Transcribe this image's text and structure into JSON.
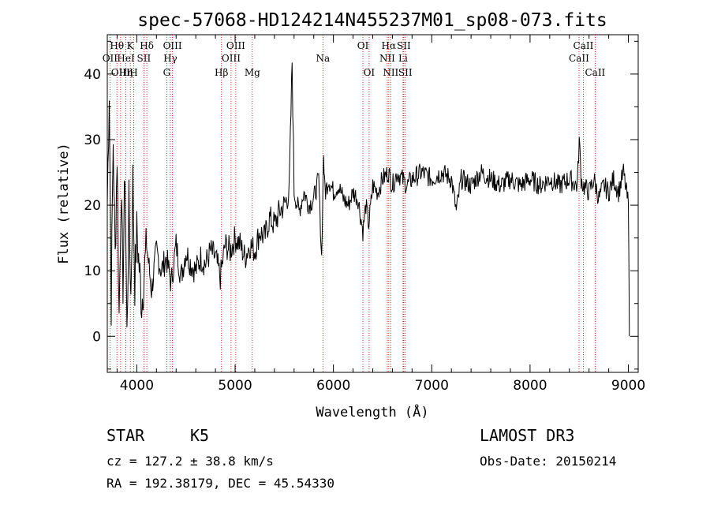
{
  "chart_data": {
    "type": "line",
    "title": "spec-57068-HD124214N455237M01_sp08-073.fits",
    "xlabel": "Wavelength (Å)",
    "ylabel": "Flux (relative)",
    "xlim": [
      3700,
      9100
    ],
    "ylim": [
      -5.5,
      46
    ],
    "xticks": [
      4000,
      5000,
      6000,
      7000,
      8000,
      9000
    ],
    "yticks": [
      0,
      10,
      20,
      30,
      40
    ],
    "series": [
      {
        "name": "flux",
        "x": [
          3700,
          3720,
          3740,
          3760,
          3780,
          3800,
          3820,
          3840,
          3860,
          3880,
          3900,
          3920,
          3940,
          3960,
          3980,
          4000,
          4050,
          4100,
          4150,
          4200,
          4250,
          4300,
          4350,
          4400,
          4450,
          4500,
          4550,
          4600,
          4650,
          4700,
          4750,
          4800,
          4850,
          4900,
          4950,
          5000,
          5050,
          5100,
          5150,
          5200,
          5250,
          5300,
          5350,
          5400,
          5450,
          5500,
          5550,
          5580,
          5600,
          5650,
          5700,
          5750,
          5800,
          5850,
          5880,
          5900,
          5910,
          5920,
          5950,
          6000,
          6050,
          6100,
          6150,
          6200,
          6250,
          6300,
          6330,
          6360,
          6400,
          6450,
          6500,
          6560,
          6600,
          6650,
          6700,
          6750,
          6800,
          6900,
          7000,
          7100,
          7200,
          7250,
          7300,
          7400,
          7500,
          7600,
          7700,
          7800,
          7900,
          8000,
          8100,
          8200,
          8300,
          8400,
          8480,
          8500,
          8520,
          8540,
          8600,
          8650,
          8700,
          8750,
          8800,
          8850,
          8900,
          8950,
          9000,
          9010
        ],
        "values": [
          20,
          38,
          5,
          30,
          12,
          28,
          3,
          22,
          8,
          26,
          0,
          20,
          6,
          24,
          8,
          16,
          5,
          14,
          7,
          13,
          10,
          12,
          8,
          14,
          9,
          13,
          11,
          10,
          12,
          11,
          13,
          12,
          9,
          14,
          13,
          15,
          14,
          12,
          14,
          13,
          16,
          15,
          18,
          17,
          19,
          20,
          22,
          42,
          22,
          19,
          22,
          20,
          21,
          24,
          12,
          28,
          23,
          22,
          24,
          22,
          23,
          21,
          20,
          22,
          21,
          16,
          20,
          17,
          23,
          22,
          24,
          25,
          23,
          25,
          24,
          23,
          24,
          25,
          24,
          25,
          24,
          19,
          24,
          23,
          25,
          24,
          23,
          24,
          23,
          24,
          23,
          24,
          23,
          24,
          23,
          30,
          24,
          23,
          22,
          24,
          21,
          23,
          22,
          24,
          22,
          25,
          20,
          0
        ]
      }
    ],
    "spectral_lines": [
      {
        "name": "OII",
        "wavelength": 3727,
        "row": 1
      },
      {
        "name": "Hθ",
        "wavelength": 3798,
        "row": 0
      },
      {
        "name": "OIII",
        "wavelength": 3835,
        "row": 2
      },
      {
        "name": "HeI",
        "wavelength": 3889,
        "row": 1
      },
      {
        "name": "Hη",
        "wavelength": 3889,
        "row": 2
      },
      {
        "name": "K",
        "wavelength": 3934,
        "row": 0
      },
      {
        "name": "H",
        "wavelength": 3969,
        "row": 2
      },
      {
        "name": "SII",
        "wavelength": 4072,
        "row": 1
      },
      {
        "name": "Hδ",
        "wavelength": 4102,
        "row": 0
      },
      {
        "name": "G",
        "wavelength": 4305,
        "row": 2
      },
      {
        "name": "Hγ",
        "wavelength": 4341,
        "row": 1
      },
      {
        "name": "OIII",
        "wavelength": 4363,
        "row": 0
      },
      {
        "name": "Hβ",
        "wavelength": 4861,
        "row": 2
      },
      {
        "name": "OIII",
        "wavelength": 4959,
        "row": 1
      },
      {
        "name": "OIII",
        "wavelength": 5007,
        "row": 0
      },
      {
        "name": "Mg",
        "wavelength": 5175,
        "row": 2
      },
      {
        "name": "Na",
        "wavelength": 5893,
        "row": 1
      },
      {
        "name": "OI",
        "wavelength": 6300,
        "row": 0
      },
      {
        "name": "OI",
        "wavelength": 6363,
        "row": 2
      },
      {
        "name": "NII",
        "wavelength": 6548,
        "row": 1
      },
      {
        "name": "Hα",
        "wavelength": 6563,
        "row": 0
      },
      {
        "name": "NII",
        "wavelength": 6583,
        "row": 2
      },
      {
        "name": "SII",
        "wavelength": 6716,
        "row": 0
      },
      {
        "name": "Li",
        "wavelength": 6708,
        "row": 1
      },
      {
        "name": "SII",
        "wavelength": 6731,
        "row": 2
      },
      {
        "name": "CaII",
        "wavelength": 8498,
        "row": 1
      },
      {
        "name": "CaII",
        "wavelength": 8542,
        "row": 0
      },
      {
        "name": "CaII",
        "wavelength": 8662,
        "row": 2
      }
    ]
  },
  "info": {
    "class_label": "STAR",
    "subclass_label": "K5",
    "survey_label": "LAMOST DR3",
    "redshift_line": "cz = 127.2 ± 38.8 km/s",
    "obs_date_line": "Obs-Date: 20150214",
    "coords_line": "RA = 192.38179, DEC =  45.54330"
  },
  "colors": {
    "spectrum": "#000000",
    "line_markers": "#cc0000",
    "frame": "#000000"
  }
}
